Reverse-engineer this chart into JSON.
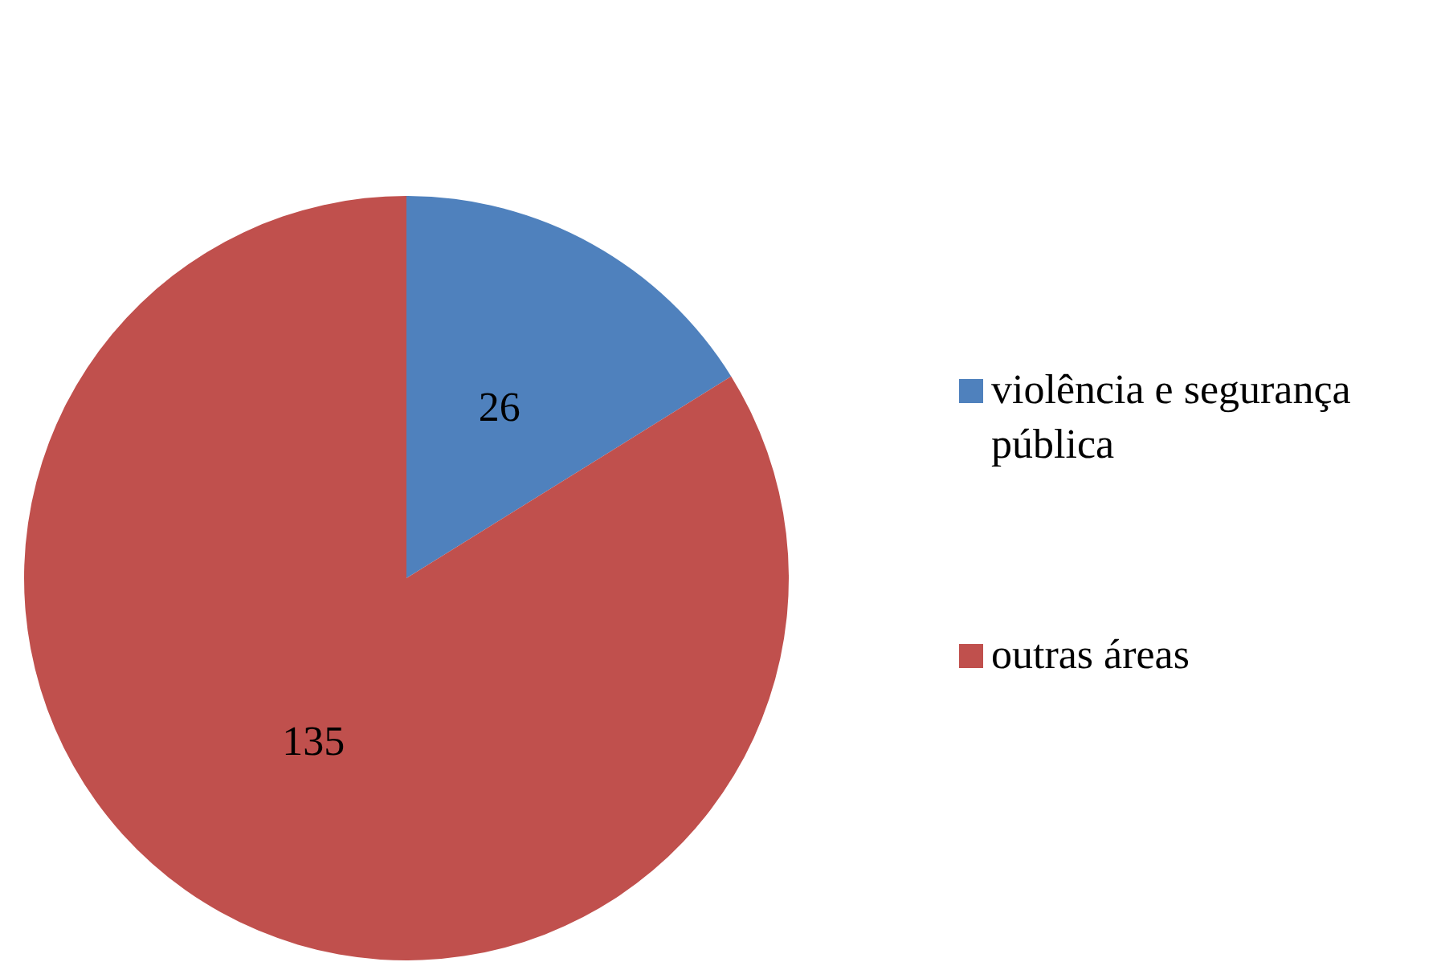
{
  "chart_data": {
    "type": "pie",
    "categories": [
      "violência e segurança pública",
      "outras áreas"
    ],
    "values": [
      26,
      135
    ],
    "colors": [
      "#4f81bd",
      "#c0504d"
    ],
    "data_labels": true,
    "legend": "right"
  }
}
